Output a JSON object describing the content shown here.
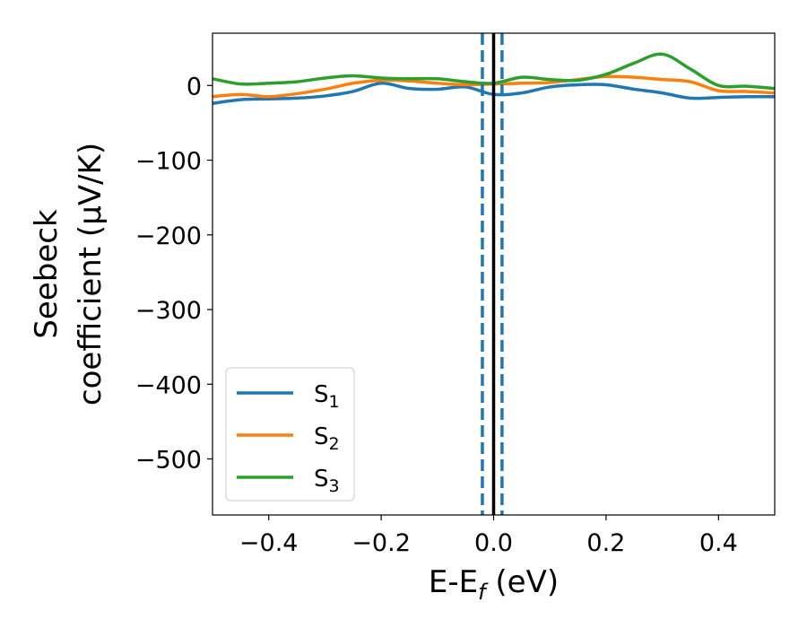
{
  "chart_data": {
    "type": "line",
    "xlabel": "E-E",
    "xlabel_sub": "f",
    "xlabel_unit": " (eV)",
    "ylabel_line1": "Seebeck",
    "ylabel_line2": "coefficient  (μV/K)",
    "xlim": [
      -0.5,
      0.5
    ],
    "ylim": [
      -575,
      70
    ],
    "xticks": [
      -0.4,
      -0.2,
      0.0,
      0.2,
      0.4
    ],
    "xtick_labels": [
      "−0.4",
      "−0.2",
      "0.0",
      "0.2",
      "0.4"
    ],
    "yticks": [
      0,
      -100,
      -200,
      -300,
      -400,
      -500
    ],
    "ytick_labels": [
      "0",
      "−100",
      "−200",
      "−300",
      "−400",
      "−500"
    ],
    "grid": false,
    "legend_position": "lower-left",
    "vlines": [
      {
        "x": 0.0,
        "style": "solid",
        "color": "#000000"
      },
      {
        "x": -0.02,
        "style": "dashed",
        "color": "#1f77b4"
      },
      {
        "x": 0.015,
        "style": "dashed",
        "color": "#1f77b4"
      }
    ],
    "series": [
      {
        "name": "S",
        "sub": "1",
        "color": "#1f77b4",
        "x": [
          -0.5,
          -0.45,
          -0.4,
          -0.35,
          -0.3,
          -0.25,
          -0.2,
          -0.15,
          -0.1,
          -0.05,
          0.0,
          0.05,
          0.1,
          0.15,
          0.2,
          0.25,
          0.3,
          0.35,
          0.4,
          0.45,
          0.5
        ],
        "y": [
          -24,
          -19,
          -18,
          -17,
          -14,
          -8,
          3,
          -4,
          -5,
          -2,
          -12,
          -10,
          -2,
          1,
          1,
          -5,
          -10,
          -17,
          -16,
          -15,
          -15
        ]
      },
      {
        "name": "S",
        "sub": "2",
        "color": "#ff7f0e",
        "x": [
          -0.5,
          -0.45,
          -0.4,
          -0.35,
          -0.3,
          -0.25,
          -0.2,
          -0.15,
          -0.1,
          -0.05,
          0.0,
          0.05,
          0.1,
          0.15,
          0.2,
          0.25,
          0.3,
          0.35,
          0.4,
          0.45,
          0.5
        ],
        "y": [
          -15,
          -12,
          -15,
          -11,
          -5,
          3,
          7,
          6,
          3,
          1,
          2,
          3,
          4,
          8,
          12,
          11,
          8,
          5,
          -7,
          -8,
          -10
        ]
      },
      {
        "name": "S",
        "sub": "3",
        "color": "#2ca02c",
        "x": [
          -0.5,
          -0.45,
          -0.4,
          -0.35,
          -0.3,
          -0.25,
          -0.2,
          -0.15,
          -0.1,
          -0.05,
          0.0,
          0.05,
          0.1,
          0.15,
          0.2,
          0.25,
          0.3,
          0.35,
          0.4,
          0.45,
          0.5
        ],
        "y": [
          9,
          2,
          3,
          5,
          10,
          13,
          10,
          9,
          9,
          5,
          3,
          11,
          8,
          7,
          15,
          30,
          42,
          22,
          0,
          -1,
          -4
        ]
      }
    ]
  }
}
